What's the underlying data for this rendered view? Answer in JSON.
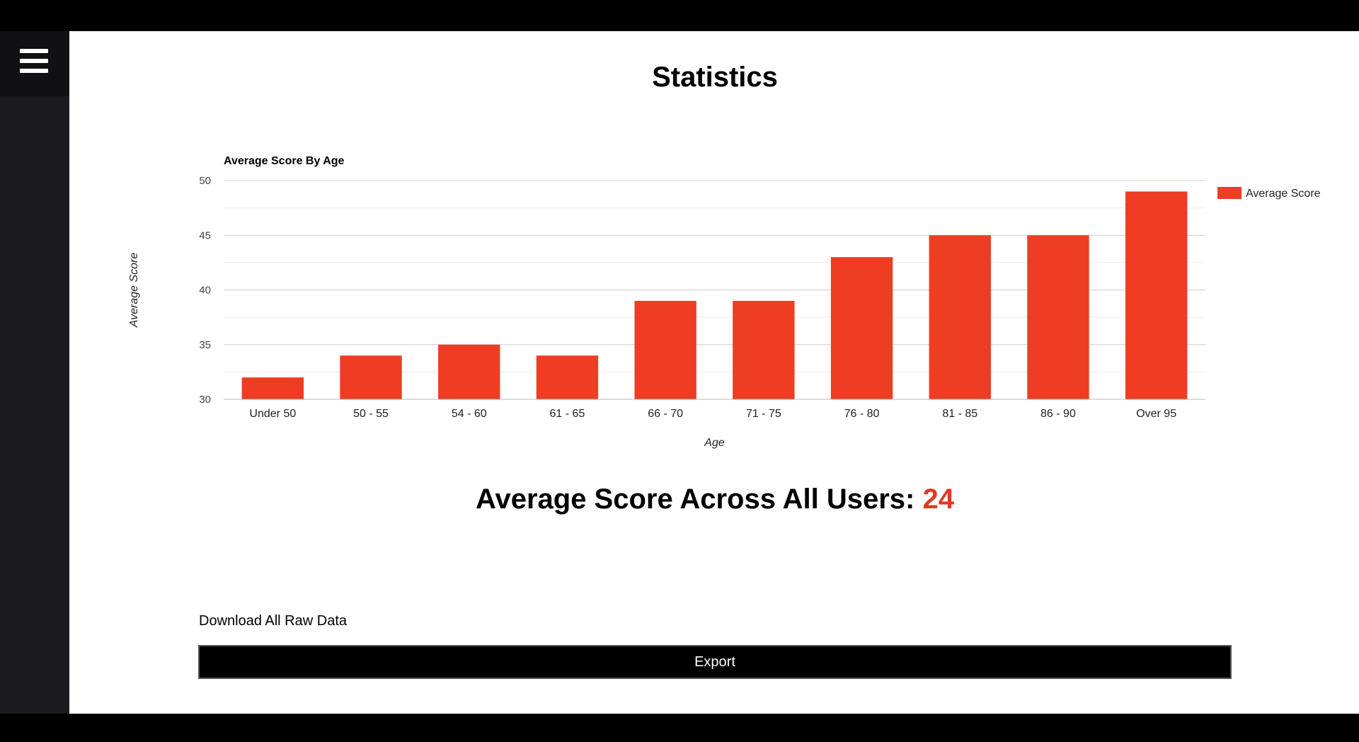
{
  "page": {
    "title": "Statistics",
    "menu_icon": "hamburger-menu-icon"
  },
  "summary": {
    "label": "Average Score Across All Users: ",
    "value": "24",
    "value_color": "#e03a25"
  },
  "download": {
    "label": "Download All Raw Data",
    "button_label": "Export"
  },
  "chart_data": {
    "type": "bar",
    "title": "Average Score By Age",
    "xlabel": "Age",
    "ylabel": "Average Score",
    "categories": [
      "Under 50",
      "50 - 55",
      "54 - 60",
      "61 - 65",
      "66 - 70",
      "71 - 75",
      "76 - 80",
      "81 - 85",
      "86 - 90",
      "Over 95"
    ],
    "series": [
      {
        "name": "Average Score",
        "color": "#ee3d23",
        "values": [
          32,
          34,
          35,
          34,
          39,
          39,
          43,
          45,
          45,
          49
        ]
      }
    ],
    "ylim": [
      30,
      50
    ],
    "yticks": [
      30,
      35,
      40,
      45,
      50
    ],
    "grid": true,
    "legend_position": "right"
  }
}
